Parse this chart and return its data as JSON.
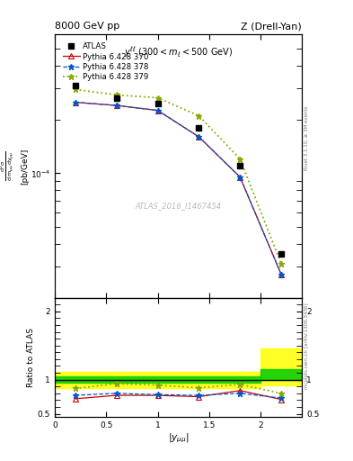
{
  "title_left": "8000 GeV pp",
  "title_right": "Z (Drell-Yan)",
  "annotation": "y^{ll} (300 < m_{l} < 500 GeV)",
  "watermark": "ATLAS_2016_I1467454",
  "rivet_label": "Rivet 3.1.10, ≥ 3M events",
  "mcplots_label": "mcplots.cern.ch [arXiv:1306.3436]",
  "xlabel": "|y_{#mu#mu}|",
  "ylabel_main": "d^{2}#sigma / d m_{#mu#mu} dy_{#mu#mu} [pb/GeV]",
  "ylabel_ratio": "Ratio to ATLAS",
  "x_data": [
    0.2,
    0.6,
    1.0,
    1.4,
    1.8,
    2.2
  ],
  "atlas_y": [
    0.00031,
    0.000265,
    0.000245,
    0.00018,
    0.00011,
    3.5e-05
  ],
  "pythia370_y": [
    0.00025,
    0.00024,
    0.000225,
    0.00016,
    9.5e-05,
    2.7e-05
  ],
  "pythia378_y": [
    0.00025,
    0.00024,
    0.000225,
    0.00016,
    9.5e-05,
    2.7e-05
  ],
  "pythia379_y": [
    0.000295,
    0.000275,
    0.000265,
    0.00021,
    0.00012,
    3.1e-05
  ],
  "ratio370_y": [
    0.72,
    0.77,
    0.77,
    0.75,
    0.84,
    0.71
  ],
  "ratio378_y": [
    0.77,
    0.8,
    0.78,
    0.77,
    0.8,
    0.73
  ],
  "ratio379_y": [
    0.87,
    0.94,
    0.92,
    0.88,
    0.93,
    0.8
  ],
  "band_x_break": 2.0,
  "band1_yellow_low": 0.88,
  "band1_yellow_high": 1.12,
  "band2_yellow_low": 0.92,
  "band2_yellow_high": 1.45,
  "band1_green_low": 0.95,
  "band1_green_high": 1.05,
  "band2_green_low": 1.0,
  "band2_green_high": 1.15,
  "color_atlas": "#000000",
  "color_370": "#cc0000",
  "color_378": "#0055cc",
  "color_379": "#88aa00",
  "color_yellow": "#ffff00",
  "color_green": "#00cc00",
  "ylim_main_low": 2e-05,
  "ylim_main_high": 0.0006,
  "ylim_ratio_low": 0.45,
  "ylim_ratio_high": 2.2,
  "xlim_low": 0,
  "xlim_high": 2.4
}
